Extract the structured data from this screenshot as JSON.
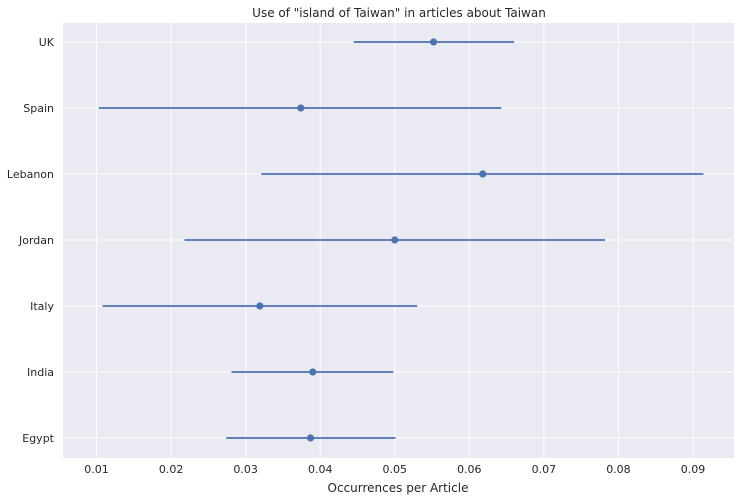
{
  "chart_data": {
    "type": "scatter",
    "title": "Use of \"island of Taiwan\" in articles about Taiwan",
    "xlabel": "Occurrences per Article",
    "ylabel": "",
    "xlim": [
      0.0055,
      0.0955
    ],
    "x_ticks": [
      "0.01",
      "0.02",
      "0.03",
      "0.04",
      "0.05",
      "0.06",
      "0.07",
      "0.08",
      "0.09"
    ],
    "categories": [
      "UK",
      "Spain",
      "Lebanon",
      "Jordan",
      "Italy",
      "India",
      "Egypt"
    ],
    "series": [
      {
        "values": [
          0.0552,
          0.0374,
          0.0618,
          0.05,
          0.0319,
          0.039,
          0.0387
        ],
        "ci_low": [
          0.0445,
          0.0103,
          0.0321,
          0.0218,
          0.0108,
          0.0281,
          0.0274
        ],
        "ci_high": [
          0.066,
          0.0643,
          0.0914,
          0.0782,
          0.053,
          0.0498,
          0.0501
        ]
      }
    ],
    "grid": true,
    "colors": {
      "marker": "#4c72b0",
      "background": "#eaeaf2",
      "grid": "#ffffff"
    }
  }
}
